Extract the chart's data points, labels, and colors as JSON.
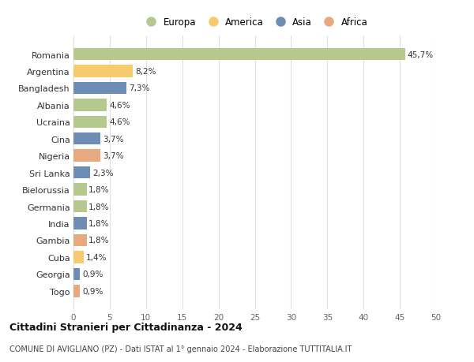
{
  "categories": [
    "Romania",
    "Argentina",
    "Bangladesh",
    "Albania",
    "Ucraina",
    "Cina",
    "Nigeria",
    "Sri Lanka",
    "Bielorussia",
    "Germania",
    "India",
    "Gambia",
    "Cuba",
    "Georgia",
    "Togo"
  ],
  "values": [
    45.7,
    8.2,
    7.3,
    4.6,
    4.6,
    3.7,
    3.7,
    2.3,
    1.8,
    1.8,
    1.8,
    1.8,
    1.4,
    0.9,
    0.9
  ],
  "labels": [
    "45,7%",
    "8,2%",
    "7,3%",
    "4,6%",
    "4,6%",
    "3,7%",
    "3,7%",
    "2,3%",
    "1,8%",
    "1,8%",
    "1,8%",
    "1,8%",
    "1,4%",
    "0,9%",
    "0,9%"
  ],
  "continents": [
    "Europa",
    "America",
    "Asia",
    "Europa",
    "Europa",
    "Asia",
    "Africa",
    "Asia",
    "Europa",
    "Europa",
    "Asia",
    "Africa",
    "America",
    "Asia",
    "Africa"
  ],
  "colors": {
    "Europa": "#b5c98e",
    "America": "#f5cb6e",
    "Asia": "#6d8db5",
    "Africa": "#e8a97e"
  },
  "legend_order": [
    "Europa",
    "America",
    "Asia",
    "Africa"
  ],
  "title1": "Cittadini Stranieri per Cittadinanza - 2024",
  "title2": "COMUNE DI AVIGLIANO (PZ) - Dati ISTAT al 1° gennaio 2024 - Elaborazione TUTTITALIA.IT",
  "xlim": [
    0,
    50
  ],
  "xticks": [
    0,
    5,
    10,
    15,
    20,
    25,
    30,
    35,
    40,
    45,
    50
  ],
  "bg_color": "#ffffff",
  "grid_color": "#e0e0e0"
}
